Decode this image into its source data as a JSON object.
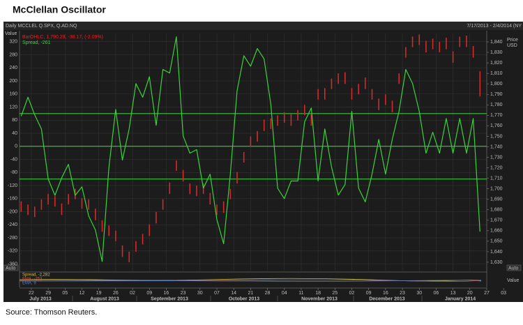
{
  "chart_data": {
    "type": "line",
    "title": "McClellan Oscillator",
    "header_left": "Daily MCCLEL Q.SPX, Q.AD.NQ",
    "header_right": "7/17/2013 - 2/4/2014 (NY",
    "y_label": "Value",
    "y2_label": [
      "Price",
      "USD"
    ],
    "auto_buttons": [
      "Auto",
      "Auto"
    ],
    "grid": true,
    "x": [
      0,
      2,
      4,
      6,
      8,
      10,
      12,
      14,
      16,
      18,
      20,
      22,
      24,
      26,
      28,
      30,
      32,
      34,
      36,
      38,
      40,
      42,
      44,
      46,
      48,
      50,
      52,
      54,
      56,
      58,
      60,
      62,
      64,
      66,
      68,
      70,
      72,
      74,
      76,
      78,
      80,
      82,
      84,
      86,
      88,
      90,
      92,
      94,
      96,
      98,
      100,
      102,
      104,
      106,
      108,
      110,
      112,
      114,
      116,
      118,
      120,
      122,
      124,
      126,
      128,
      130,
      132,
      134,
      136
    ],
    "xlim": [
      -0.5,
      138
    ],
    "xticks": [
      {
        "value": 3,
        "label": "22"
      },
      {
        "value": 8,
        "label": "29"
      },
      {
        "value": 13,
        "label": "05"
      },
      {
        "value": 18,
        "label": "12"
      },
      {
        "value": 23,
        "label": "19"
      },
      {
        "value": 28,
        "label": "26"
      },
      {
        "value": 33,
        "label": "02"
      },
      {
        "value": 38,
        "label": "09"
      },
      {
        "value": 43,
        "label": "16"
      },
      {
        "value": 48,
        "label": "23"
      },
      {
        "value": 53,
        "label": "30"
      },
      {
        "value": 58,
        "label": "07"
      },
      {
        "value": 63,
        "label": "14"
      },
      {
        "value": 68,
        "label": "21"
      },
      {
        "value": 73,
        "label": "28"
      },
      {
        "value": 78,
        "label": "04"
      },
      {
        "value": 83,
        "label": "11"
      },
      {
        "value": 88,
        "label": "18"
      },
      {
        "value": 93,
        "label": "25"
      },
      {
        "value": 98,
        "label": "02"
      },
      {
        "value": 103,
        "label": "09"
      },
      {
        "value": 108,
        "label": "16"
      },
      {
        "value": 113,
        "label": "23"
      },
      {
        "value": 118,
        "label": "30"
      },
      {
        "value": 123,
        "label": "06"
      },
      {
        "value": 128,
        "label": "13"
      },
      {
        "value": 133,
        "label": "20"
      },
      {
        "value": 138,
        "label": "27"
      },
      {
        "value": 143,
        "label": "03"
      }
    ],
    "months": [
      "July 2013",
      "August 2013",
      "September 2013",
      "October 2013",
      "November 2013",
      "December 2013",
      "January 2014"
    ],
    "ylim": [
      -380,
      345
    ],
    "yticks": [
      320,
      280,
      240,
      200,
      160,
      120,
      80,
      40,
      0,
      -40,
      -80,
      -120,
      -160,
      -200,
      -240,
      -280,
      -320,
      -360
    ],
    "y2lim": [
      1622,
      1848
    ],
    "y2ticks": [
      {
        "value": 1840,
        "label": "1,840"
      },
      {
        "value": 1830,
        "label": "1,830"
      },
      {
        "value": 1820,
        "label": "1,820"
      },
      {
        "value": 1810,
        "label": "1,810"
      },
      {
        "value": 1800,
        "label": "1,800"
      },
      {
        "value": 1790,
        "label": "1,790"
      },
      {
        "value": 1780,
        "label": "1,780"
      },
      {
        "value": 1770,
        "label": "1,770"
      },
      {
        "value": 1760,
        "label": "1,760"
      },
      {
        "value": 1750,
        "label": "1,750"
      },
      {
        "value": 1740,
        "label": "1,740"
      },
      {
        "value": 1730,
        "label": "1,730"
      },
      {
        "value": 1720,
        "label": "1,720"
      },
      {
        "value": 1710,
        "label": "1,710"
      },
      {
        "value": 1700,
        "label": "1,700"
      },
      {
        "value": 1690,
        "label": "1,690"
      },
      {
        "value": 1680,
        "label": "1,680"
      },
      {
        "value": 1670,
        "label": "1,670"
      },
      {
        "value": 1660,
        "label": "1,660"
      },
      {
        "value": 1650,
        "label": "1,650"
      },
      {
        "value": 1640,
        "label": "1,640"
      },
      {
        "value": 1630,
        "label": "1,630"
      }
    ],
    "reference_lines": [
      100,
      0,
      -100
    ],
    "reference_color": "#3ee03e",
    "series": [
      {
        "name": "Spread, -261",
        "color": "#39d43a",
        "values": [
          92,
          150,
          96,
          53,
          -100,
          -150,
          -96,
          -55,
          -150,
          -124,
          -213,
          -256,
          -352,
          -64,
          113,
          -42,
          53,
          192,
          150,
          213,
          64,
          235,
          224,
          335,
          32,
          -21,
          -10,
          -128,
          -85,
          -224,
          -298,
          -85,
          170,
          277,
          245,
          299,
          267,
          128,
          -128,
          -160,
          -106,
          -106,
          75,
          117,
          -106,
          53,
          -64,
          -149,
          -117,
          107,
          -128,
          -170,
          -85,
          21,
          -85,
          21,
          107,
          235,
          192,
          107,
          -21,
          43,
          -21,
          85,
          -21,
          85,
          -21,
          85,
          -261
        ]
      }
    ],
    "price": {
      "name": "BarOHLC, 1,790.29, -38.17, (-2.09%)",
      "color": "#d42a2a",
      "axis": "y2",
      "high": [
        1688,
        1685,
        1683,
        1690,
        1695,
        1693,
        1686,
        1695,
        1700,
        1691,
        1690,
        1681,
        1670,
        1665,
        1660,
        1646,
        1640,
        1650,
        1657,
        1666,
        1678,
        1690,
        1706,
        1727,
        1718,
        1705,
        1703,
        1705,
        1696,
        1685,
        1688,
        1700,
        1716,
        1735,
        1750,
        1755,
        1766,
        1767,
        1770,
        1773,
        1771,
        1775,
        1780,
        1771,
        1795,
        1796,
        1805,
        1810,
        1811,
        1796,
        1800,
        1806,
        1795,
        1786,
        1790,
        1784,
        1810,
        1835,
        1845,
        1847,
        1841,
        1843,
        1840,
        1844,
        1831,
        1845,
        1846,
        1836,
        1812
      ],
      "low": [
        1678,
        1675,
        1673,
        1680,
        1685,
        1683,
        1675,
        1685,
        1690,
        1681,
        1680,
        1670,
        1659,
        1655,
        1650,
        1635,
        1630,
        1640,
        1647,
        1655,
        1667,
        1680,
        1695,
        1717,
        1707,
        1695,
        1693,
        1695,
        1685,
        1675,
        1677,
        1690,
        1705,
        1725,
        1740,
        1745,
        1755,
        1757,
        1760,
        1763,
        1760,
        1765,
        1770,
        1760,
        1785,
        1785,
        1795,
        1800,
        1800,
        1785,
        1790,
        1795,
        1785,
        1775,
        1780,
        1773,
        1800,
        1825,
        1835,
        1837,
        1830,
        1833,
        1830,
        1833,
        1820,
        1835,
        1835,
        1825,
        1788
      ]
    },
    "lower_panel": {
      "legend": [
        {
          "name": "Spread, -2,282",
          "color": "#d8c040"
        },
        {
          "name": "EMA, -253",
          "color": "#e05030"
        },
        {
          "name": "EMA, 9",
          "color": "#4a8ad8"
        }
      ],
      "y_label": "Value"
    },
    "source": "Source: Thomson Reuters."
  }
}
